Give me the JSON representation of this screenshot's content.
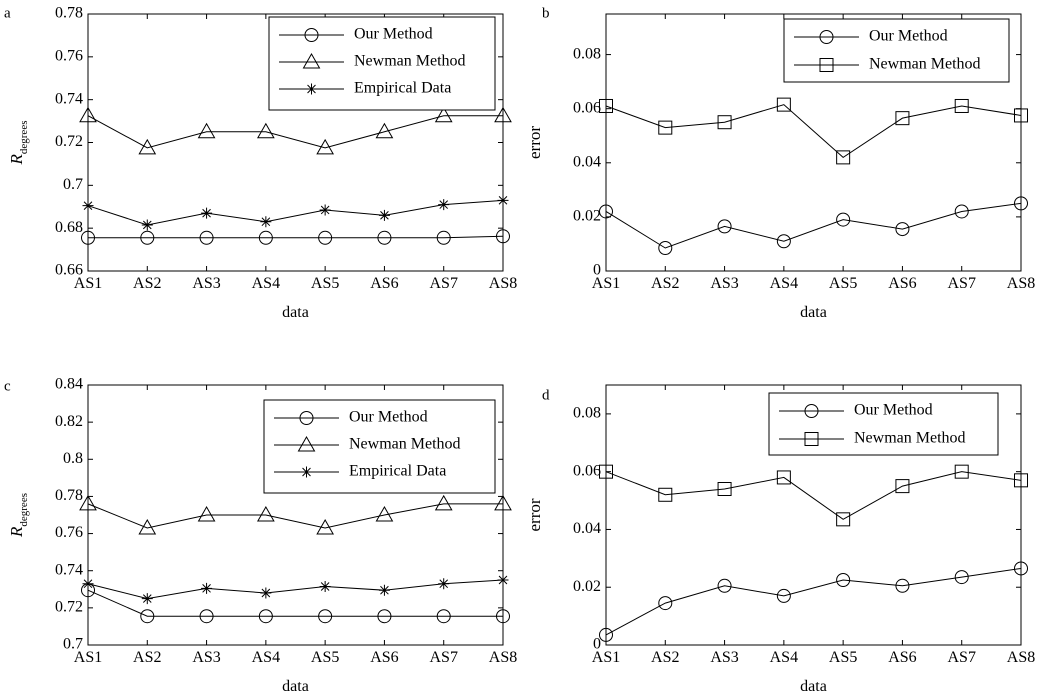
{
  "chart_data": [
    {
      "panel_label": "a",
      "type": "line",
      "categories": [
        "AS1",
        "AS2",
        "AS3",
        "AS4",
        "AS5",
        "AS6",
        "AS7",
        "AS8"
      ],
      "xlabel": "data",
      "ylabel_main": "R",
      "ylabel_sub": "degrees",
      "ylim": [
        0.66,
        0.78
      ],
      "yticks": [
        "0.66",
        "0.68",
        "0.7",
        "0.72",
        "0.74",
        "0.76",
        "0.78"
      ],
      "legend_position": "top-right",
      "series": [
        {
          "name": "Our Method",
          "marker": "circle",
          "values": [
            0.6755,
            0.6755,
            0.6755,
            0.6755,
            0.6755,
            0.6755,
            0.6755,
            0.6762
          ]
        },
        {
          "name": "Newman Method",
          "marker": "triangle",
          "values": [
            0.7325,
            0.7175,
            0.725,
            0.725,
            0.7175,
            0.725,
            0.7325,
            0.7325
          ]
        },
        {
          "name": "Empirical Data",
          "marker": "asterisk",
          "values": [
            0.6905,
            0.6815,
            0.687,
            0.683,
            0.6885,
            0.686,
            0.691,
            0.693
          ]
        }
      ]
    },
    {
      "panel_label": "b",
      "type": "line",
      "categories": [
        "AS1",
        "AS2",
        "AS3",
        "AS4",
        "AS5",
        "AS6",
        "AS7",
        "AS8"
      ],
      "xlabel": "data",
      "ylabel_main": "error",
      "ylabel_sub": "",
      "ylim": [
        0,
        0.095
      ],
      "yticks": [
        "0",
        "0.02",
        "0.04",
        "0.06",
        "0.08"
      ],
      "legend_position": "top-right",
      "series": [
        {
          "name": "Our Method",
          "marker": "circle",
          "values": [
            0.022,
            0.0085,
            0.0165,
            0.011,
            0.019,
            0.0155,
            0.022,
            0.025
          ]
        },
        {
          "name": "Newman Method",
          "marker": "square",
          "values": [
            0.061,
            0.053,
            0.055,
            0.0615,
            0.042,
            0.0565,
            0.061,
            0.0575
          ]
        }
      ]
    },
    {
      "panel_label": "c",
      "type": "line",
      "categories": [
        "AS1",
        "AS2",
        "AS3",
        "AS4",
        "AS5",
        "AS6",
        "AS7",
        "AS8"
      ],
      "xlabel": "data",
      "ylabel_main": "R",
      "ylabel_sub": "degrees",
      "ylim": [
        0.7,
        0.84
      ],
      "yticks": [
        "0.7",
        "0.72",
        "0.74",
        "0.76",
        "0.78",
        "0.8",
        "0.82",
        "0.84"
      ],
      "legend_position": "top-right",
      "series": [
        {
          "name": "Our Method",
          "marker": "circle",
          "values": [
            0.7295,
            0.7155,
            0.7155,
            0.7155,
            0.7155,
            0.7155,
            0.7155,
            0.7155
          ]
        },
        {
          "name": "Newman Method",
          "marker": "triangle",
          "values": [
            0.776,
            0.763,
            0.77,
            0.77,
            0.763,
            0.77,
            0.776,
            0.776
          ]
        },
        {
          "name": "Empirical Data",
          "marker": "asterisk",
          "values": [
            0.733,
            0.725,
            0.7305,
            0.728,
            0.7315,
            0.7295,
            0.733,
            0.735
          ]
        }
      ]
    },
    {
      "panel_label": "d",
      "type": "line",
      "categories": [
        "AS1",
        "AS2",
        "AS3",
        "AS4",
        "AS5",
        "AS6",
        "AS7",
        "AS8"
      ],
      "xlabel": "data",
      "ylabel_main": "error",
      "ylabel_sub": "",
      "ylim": [
        0,
        0.09
      ],
      "yticks": [
        "0",
        "0.02",
        "0.04",
        "0.06",
        "0.08"
      ],
      "legend_position": "top-right",
      "series": [
        {
          "name": "Our Method",
          "marker": "circle",
          "values": [
            0.0035,
            0.0145,
            0.0205,
            0.017,
            0.0225,
            0.0205,
            0.0235,
            0.0265
          ]
        },
        {
          "name": "Newman Method",
          "marker": "square",
          "values": [
            0.06,
            0.052,
            0.054,
            0.058,
            0.0435,
            0.055,
            0.06,
            0.057
          ]
        }
      ]
    }
  ]
}
